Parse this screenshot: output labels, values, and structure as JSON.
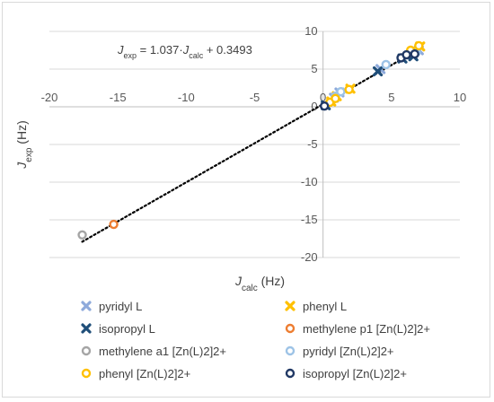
{
  "chart_data": {
    "type": "scatter",
    "xlabel": {
      "main": "J",
      "sub": "calc",
      "unit": " (Hz)"
    },
    "ylabel": {
      "main": "J",
      "sub": "exp",
      "unit": " (Hz)"
    },
    "xlim": [
      -20,
      10
    ],
    "ylim": [
      -20,
      10
    ],
    "x_ticks": [
      -20,
      -15,
      -10,
      -5,
      0,
      5,
      10
    ],
    "y_ticks": [
      -20,
      -15,
      -10,
      -5,
      0,
      5,
      10
    ],
    "grid": "horizontal",
    "legend_position": "bottom",
    "equation": {
      "j1": "J",
      "sub1": "exp",
      "mid": " = 1.037·",
      "j2": "J",
      "sub2": "calc",
      "tail": " + 0.3493"
    },
    "trendline": {
      "slope": 1.037,
      "intercept": 0.3493,
      "x_range": [
        -17.6,
        7.0
      ],
      "style": "dotted",
      "color": "#000000"
    },
    "series": [
      {
        "name": "pyridyl L",
        "marker": "x",
        "color": "#8eaadb",
        "points": [
          [
            0.8,
            1.2
          ],
          [
            1.2,
            1.9
          ],
          [
            4.2,
            5.0
          ],
          [
            6.5,
            7.0
          ],
          [
            7.0,
            7.5
          ]
        ]
      },
      {
        "name": "phenyl L",
        "marker": "x",
        "color": "#ffc000",
        "points": [
          [
            0.6,
            0.7
          ],
          [
            1.0,
            1.4
          ],
          [
            2.0,
            2.4
          ],
          [
            6.5,
            7.3
          ],
          [
            7.1,
            8.0
          ]
        ]
      },
      {
        "name": "isopropyl L",
        "marker": "x",
        "color": "#1f4e79",
        "points": [
          [
            0.2,
            0.2
          ],
          [
            4.0,
            4.7
          ],
          [
            5.8,
            6.4
          ],
          [
            6.6,
            6.7
          ]
        ]
      },
      {
        "name": "methylene p1 [Zn(L)2]2+",
        "marker": "o",
        "color": "#ed7d31",
        "points": [
          [
            -15.3,
            -15.6
          ]
        ]
      },
      {
        "name": "methylene a1 [Zn(L)2]2+",
        "marker": "o",
        "color": "#a5a5a5",
        "points": [
          [
            -17.6,
            -17.0
          ]
        ]
      },
      {
        "name": "pyridyl [Zn(L)2]2+",
        "marker": "o",
        "color": "#9dc3e6",
        "points": [
          [
            0.9,
            1.4
          ],
          [
            1.3,
            2.0
          ],
          [
            4.6,
            5.6
          ],
          [
            6.8,
            7.2
          ]
        ]
      },
      {
        "name": "phenyl [Zn(L)2]2+",
        "marker": "o",
        "color": "#ffc000",
        "points": [
          [
            0.5,
            0.6
          ],
          [
            0.9,
            1.1
          ],
          [
            1.9,
            2.3
          ],
          [
            6.4,
            7.5
          ],
          [
            7.0,
            8.1
          ]
        ]
      },
      {
        "name": "isopropyl [Zn(L)2]2+",
        "marker": "o",
        "color": "#203864",
        "points": [
          [
            0.1,
            0.1
          ],
          [
            5.7,
            6.5
          ],
          [
            6.1,
            6.9
          ],
          [
            6.7,
            7.0
          ]
        ]
      }
    ]
  }
}
